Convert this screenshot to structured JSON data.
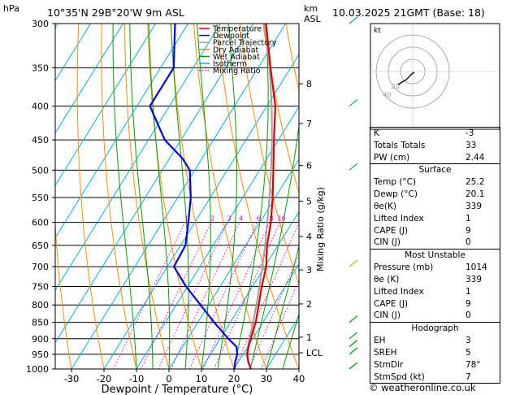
{
  "header": {
    "pressure_unit": "hPa",
    "location": "10°35'N  29B°20'W  9m  ASL",
    "height_unit": "km",
    "height_unit2": "ASL",
    "datetime": "10.03.2025  21GMT  (Base: 18)"
  },
  "legend": {
    "items": [
      {
        "label": "Temperature",
        "color": "#e00000",
        "style": "solid"
      },
      {
        "label": "Dewpoint",
        "color": "#0000e0",
        "style": "solid"
      },
      {
        "label": "Parcel Trajectory",
        "color": "#a0a0a0",
        "style": "solid"
      },
      {
        "label": "Dry Adiabat",
        "color": "#ff8c00",
        "style": "solid"
      },
      {
        "label": "Wet Adiabat",
        "color": "#00a000",
        "style": "solid"
      },
      {
        "label": "Isotherm",
        "color": "#00b0e0",
        "style": "solid"
      },
      {
        "label": "Mixing Ratio",
        "color": "#e000e0",
        "style": "dotted"
      }
    ]
  },
  "chart_data": {
    "type": "line",
    "xlabel": "Dewpoint / Temperature (°C)",
    "ylabel": "hPa",
    "x_ticks": [
      -30,
      -20,
      -10,
      0,
      10,
      20,
      30,
      40
    ],
    "xlim": [
      -35,
      40
    ],
    "y_ticks": [
      300,
      350,
      400,
      450,
      500,
      550,
      600,
      650,
      700,
      750,
      800,
      850,
      900,
      950,
      1000
    ],
    "ylim": [
      1000,
      300
    ],
    "y_scale": "log",
    "km_ticks": [
      {
        "label": "8",
        "p": 370
      },
      {
        "label": "7",
        "p": 425
      },
      {
        "label": "6",
        "p": 492
      },
      {
        "label": "5",
        "p": 557
      },
      {
        "label": "4",
        "p": 630
      },
      {
        "label": "3",
        "p": 708
      },
      {
        "label": "2",
        "p": 797
      },
      {
        "label": "1",
        "p": 895
      },
      {
        "label": "LCL",
        "p": 945
      }
    ],
    "secondary_ylabel": "Mixing Ratio (g/kg)",
    "mixing_ratio_labels": [
      "1",
      "2",
      "3",
      "4",
      "6",
      "8",
      "10",
      "15",
      "20",
      "25"
    ],
    "series": [
      {
        "name": "Temperature",
        "p": [
          1000,
          975,
          950,
          925,
          900,
          850,
          800,
          750,
          700,
          650,
          600,
          550,
          500,
          450,
          400,
          350,
          300
        ],
        "t": [
          25.2,
          23.0,
          21.3,
          20.2,
          19.4,
          17.8,
          15.4,
          12.8,
          10.4,
          6.6,
          3.4,
          -0.8,
          -5.8,
          -11.4,
          -17.4,
          -26.2,
          -36.0
        ]
      },
      {
        "name": "Dewpoint",
        "p": [
          1000,
          975,
          950,
          925,
          900,
          850,
          800,
          750,
          700,
          650,
          600,
          550,
          500,
          480,
          450,
          400,
          350,
          300
        ],
        "t": [
          20.1,
          19.0,
          18.2,
          16.5,
          12.5,
          5.0,
          -2.5,
          -10.5,
          -18.0,
          -18.5,
          -22.0,
          -26.0,
          -31.5,
          -36.0,
          -45.0,
          -56.0,
          -56.0,
          -64.0
        ]
      },
      {
        "name": "Parcel Trajectory",
        "p": [
          1000,
          950,
          900,
          850,
          800,
          750,
          700,
          650,
          600,
          550,
          500,
          450,
          400,
          350,
          300
        ],
        "t": [
          25.2,
          21.0,
          19.0,
          17.0,
          14.7,
          12.1,
          9.2,
          6.0,
          2.3,
          -1.8,
          -6.5,
          -12.0,
          -18.5,
          -26.5,
          -36.5
        ]
      }
    ],
    "wind_barbs_levels": [
      300,
      400,
      500,
      700,
      850,
      900,
      925,
      950,
      1000
    ]
  },
  "hodograph": {
    "label": "kt",
    "ring_labels": [
      "40",
      "20"
    ]
  },
  "indices": {
    "top": [
      {
        "label": "K",
        "value": "-3"
      },
      {
        "label": "Totals Totals",
        "value": "33"
      },
      {
        "label": "PW (cm)",
        "value": "2.44"
      }
    ],
    "surface": {
      "title": "Surface",
      "rows": [
        {
          "label": "Temp (°C)",
          "value": "25.2"
        },
        {
          "label": "Dewp (°C)",
          "value": "20.1"
        },
        {
          "label": "θe(K)",
          "value": "339"
        },
        {
          "label": "Lifted Index",
          "value": "1"
        },
        {
          "label": "CAPE (J)",
          "value": "9"
        },
        {
          "label": "CIN (J)",
          "value": "0"
        }
      ]
    },
    "most_unstable": {
      "title": "Most Unstable",
      "rows": [
        {
          "label": "Pressure (mb)",
          "value": "1014"
        },
        {
          "label": "θe (K)",
          "value": "339"
        },
        {
          "label": "Lifted Index",
          "value": "1"
        },
        {
          "label": "CAPE (J)",
          "value": "9"
        },
        {
          "label": "CIN (J)",
          "value": "0"
        }
      ]
    },
    "hodograph_box": {
      "title": "Hodograph",
      "rows": [
        {
          "label": "EH",
          "value": "3"
        },
        {
          "label": "SREH",
          "value": "5"
        },
        {
          "label": "StmDir",
          "value": "78°"
        },
        {
          "label": "StmSpd (kt)",
          "value": "7"
        }
      ]
    }
  },
  "footer": "© weatheronline.co.uk"
}
